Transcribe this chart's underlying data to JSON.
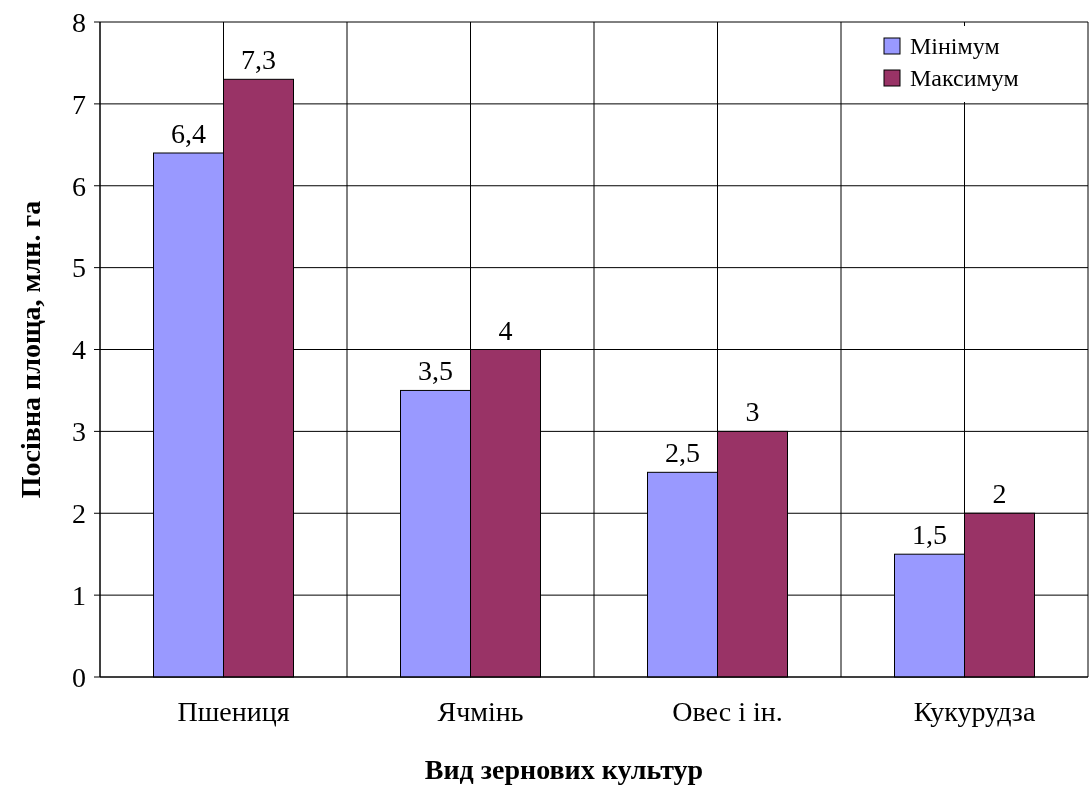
{
  "chart_data": {
    "type": "bar",
    "xlabel": "Вид зернових культур",
    "ylabel": "Посівна площа, млн. га",
    "categories": [
      "Пшениця",
      "Ячмінь",
      "Овес і ін.",
      "Кукурудза"
    ],
    "series": [
      {
        "name": "Мінімум",
        "color": "#9999ff",
        "values": [
          6.4,
          3.5,
          2.5,
          1.5
        ],
        "value_labels": [
          "6,4",
          "3,5",
          "2,5",
          "1,5"
        ]
      },
      {
        "name": "Максимум",
        "color": "#993366",
        "values": [
          7.3,
          4,
          3,
          2
        ],
        "value_labels": [
          "7,3",
          "4",
          "3",
          "2"
        ]
      }
    ],
    "ylim": [
      0,
      8
    ],
    "yticks": [
      0,
      1,
      2,
      3,
      4,
      5,
      6,
      7,
      8
    ],
    "grid": true,
    "legend": "top right"
  }
}
